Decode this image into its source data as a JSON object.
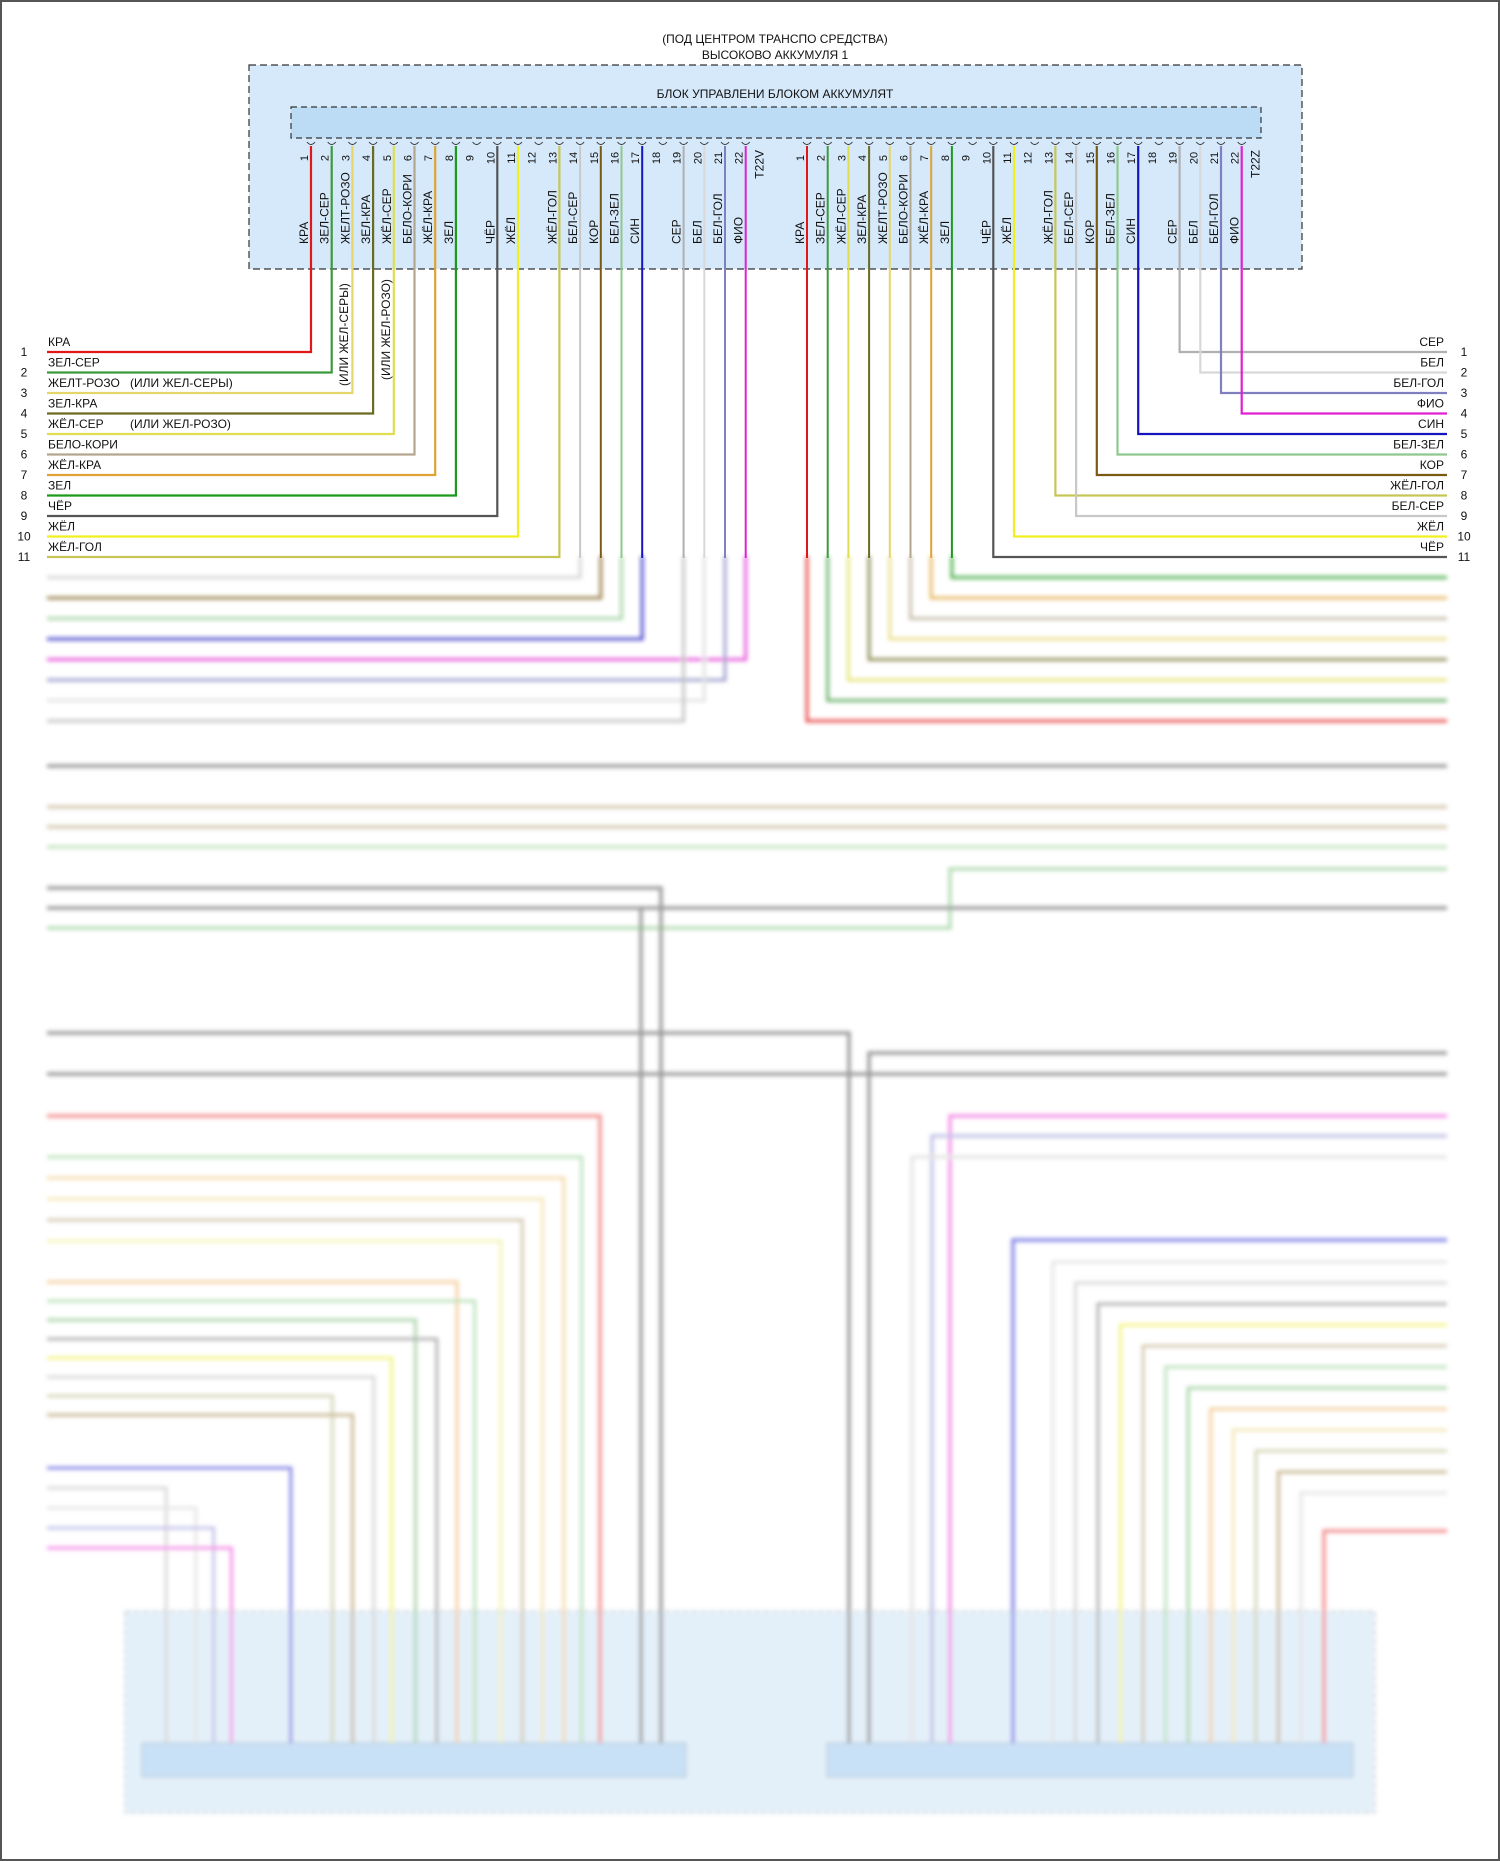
{
  "header": {
    "location": "(ПОД ЦЕНТРОМ ТРАНСПО СРЕДСТВА)",
    "component": "ВЫСОКОВО АККУМУЛЯ 1",
    "module": "БЛОК УПРАВЛЕНИ БЛОКОМ АККУМУЛЯТ"
  },
  "connector_left": {
    "name": "T22V",
    "pins": [
      {
        "n": "1",
        "color_name": "КРА",
        "color": "#e01818"
      },
      {
        "n": "2",
        "color_name": "ЗЕЛ-СЕР",
        "color": "#3c9a3c"
      },
      {
        "n": "3",
        "color_name": "ЖЕЛТ-РОЗО",
        "color": "#e6d66a"
      },
      {
        "n": "4",
        "color_name": "ЗЕЛ-КРА",
        "color": "#6a6a22"
      },
      {
        "n": "5",
        "color_name": "ЖЁЛ-СЕР",
        "color": "#dede50"
      },
      {
        "n": "6",
        "color_name": "БЕЛО-КОРИ",
        "color": "#b4a68e"
      },
      {
        "n": "7",
        "color_name": "ЖЁЛ-КРА",
        "color": "#e0a232"
      },
      {
        "n": "8",
        "color_name": "ЗЕЛ",
        "color": "#1c9a1c"
      },
      {
        "n": "9",
        "color_name": "",
        "color": ""
      },
      {
        "n": "10",
        "color_name": "ЧЁР",
        "color": "#555555"
      },
      {
        "n": "11",
        "color_name": "ЖЁЛ",
        "color": "#f0f020"
      },
      {
        "n": "12",
        "color_name": "",
        "color": ""
      },
      {
        "n": "13",
        "color_name": "ЖЁЛ-ГОЛ",
        "color": "#c6c654"
      },
      {
        "n": "14",
        "color_name": "БЕЛ-СЕР",
        "color": "#c8c8c8"
      },
      {
        "n": "15",
        "color_name": "КОР",
        "color": "#7a5a12"
      },
      {
        "n": "16",
        "color_name": "БЕЛ-ЗЕЛ",
        "color": "#8ec88e"
      },
      {
        "n": "17",
        "color_name": "СИН",
        "color": "#1414c0"
      },
      {
        "n": "18",
        "color_name": "",
        "color": ""
      },
      {
        "n": "19",
        "color_name": "СЕР",
        "color": "#b0b0b0"
      },
      {
        "n": "20",
        "color_name": "БЕЛ",
        "color": "#d8d8d8"
      },
      {
        "n": "21",
        "color_name": "БЕЛ-ГОЛ",
        "color": "#8080c0"
      },
      {
        "n": "22",
        "color_name": "ФИО",
        "color": "#e020d0"
      }
    ]
  },
  "connector_right": {
    "name": "T22Z",
    "pins": [
      {
        "n": "1",
        "color_name": "КРА",
        "color": "#e01818"
      },
      {
        "n": "2",
        "color_name": "ЗЕЛ-СЕР",
        "color": "#3c9a3c"
      },
      {
        "n": "3",
        "color_name": "ЖЁЛ-СЕР",
        "color": "#dede50"
      },
      {
        "n": "4",
        "color_name": "ЗЕЛ-КРА",
        "color": "#6a6a22"
      },
      {
        "n": "5",
        "color_name": "ЖЕЛТ-РОЗО",
        "color": "#e6d66a"
      },
      {
        "n": "6",
        "color_name": "БЕЛО-КОРИ",
        "color": "#b4a68e"
      },
      {
        "n": "7",
        "color_name": "ЖЁЛ-КРА",
        "color": "#e0a232"
      },
      {
        "n": "8",
        "color_name": "ЗЕЛ",
        "color": "#1c9a1c"
      },
      {
        "n": "9",
        "color_name": "",
        "color": ""
      },
      {
        "n": "10",
        "color_name": "ЧЁР",
        "color": "#555555"
      },
      {
        "n": "11",
        "color_name": "ЖЁЛ",
        "color": "#f0f020"
      },
      {
        "n": "12",
        "color_name": "",
        "color": ""
      },
      {
        "n": "13",
        "color_name": "ЖЁЛ-ГОЛ",
        "color": "#c6c654"
      },
      {
        "n": "14",
        "color_name": "БЕЛ-СЕР",
        "color": "#c8c8c8"
      },
      {
        "n": "15",
        "color_name": "КОР",
        "color": "#7a5a12"
      },
      {
        "n": "16",
        "color_name": "БЕЛ-ЗЕЛ",
        "color": "#8ec88e"
      },
      {
        "n": "17",
        "color_name": "СИН",
        "color": "#1414c0"
      },
      {
        "n": "18",
        "color_name": "",
        "color": ""
      },
      {
        "n": "19",
        "color_name": "СЕР",
        "color": "#b0b0b0"
      },
      {
        "n": "20",
        "color_name": "БЕЛ",
        "color": "#d8d8d8"
      },
      {
        "n": "21",
        "color_name": "БЕЛ-ГОЛ",
        "color": "#8080c0"
      },
      {
        "n": "22",
        "color_name": "ФИО",
        "color": "#e020d0"
      }
    ]
  },
  "left_terminals": [
    {
      "n": "1",
      "label": "КРА",
      "pin": 1
    },
    {
      "n": "2",
      "label": "ЗЕЛ-СЕР",
      "pin": 2
    },
    {
      "n": "3",
      "label": "ЖЕЛТ-РОЗО",
      "pin": 3,
      "note": "(ИЛИ ЖЕЛ-СЕРЫ)"
    },
    {
      "n": "4",
      "label": "ЗЕЛ-КРА",
      "pin": 4
    },
    {
      "n": "5",
      "label": "ЖЁЛ-СЕР",
      "pin": 5,
      "note": "(ИЛИ ЖЕЛ-РОЗО)"
    },
    {
      "n": "6",
      "label": "БЕЛО-КОРИ",
      "pin": 6
    },
    {
      "n": "7",
      "label": "ЖЁЛ-КРА",
      "pin": 7
    },
    {
      "n": "8",
      "label": "ЗЕЛ",
      "pin": 8
    },
    {
      "n": "9",
      "label": "ЧЁР",
      "pin": 10
    },
    {
      "n": "10",
      "label": "ЖЁЛ",
      "pin": 11
    },
    {
      "n": "11",
      "label": "ЖЁЛ-ГОЛ",
      "pin": 13
    }
  ],
  "right_terminals": [
    {
      "n": "1",
      "label": "СЕР",
      "pin": 19
    },
    {
      "n": "2",
      "label": "БЕЛ",
      "pin": 20
    },
    {
      "n": "3",
      "label": "БЕЛ-ГОЛ",
      "pin": 21
    },
    {
      "n": "4",
      "label": "ФИО",
      "pin": 22
    },
    {
      "n": "5",
      "label": "СИН",
      "pin": 17
    },
    {
      "n": "6",
      "label": "БЕЛ-ЗЕЛ",
      "pin": 16
    },
    {
      "n": "7",
      "label": "КОР",
      "pin": 15
    },
    {
      "n": "8",
      "label": "ЖЁЛ-ГОЛ",
      "pin": 13
    },
    {
      "n": "9",
      "label": "БЕЛ-СЕР",
      "pin": 14
    },
    {
      "n": "10",
      "label": "ЖЁЛ",
      "pin": 11
    },
    {
      "n": "11",
      "label": "ЧЁР",
      "pin": 10
    }
  ],
  "vertical_notes": [
    "(ИЛИ ЖЕЛ-СЕРЫ)",
    "(ИЛИ ЖЕЛ-РОЗО)"
  ],
  "colors": {
    "module_fill": "#d6e9fa",
    "connector_fill": "#c6e0f8",
    "border": "#333333"
  }
}
